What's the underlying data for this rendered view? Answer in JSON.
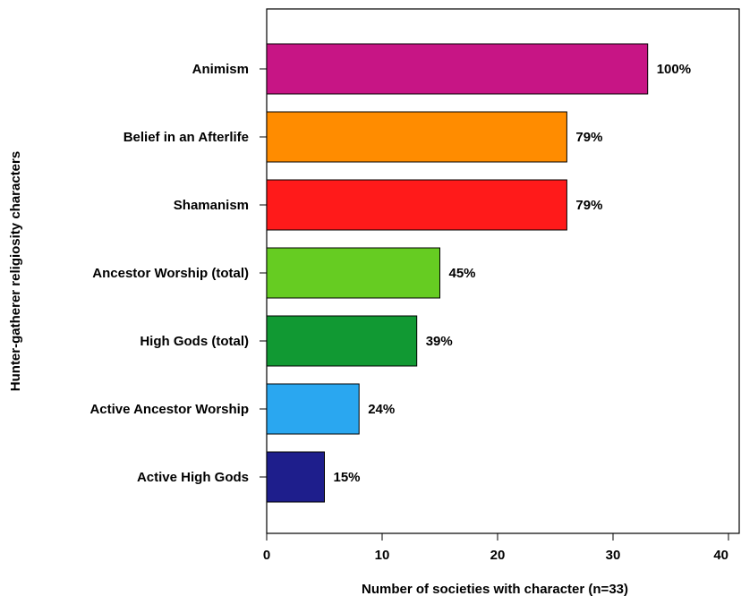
{
  "chart_data": {
    "type": "bar",
    "orientation": "horizontal",
    "xlabel": "Number of societies with character (n=33)",
    "ylabel": "Hunter-gatherer religiosity characters",
    "xlim": [
      0,
      40
    ],
    "xticks": [
      0,
      10,
      20,
      30,
      40
    ],
    "grid": false,
    "categories": [
      "Animism",
      "Belief in an Afterlife",
      "Shamanism",
      "Ancestor Worship (total)",
      "High Gods (total)",
      "Active Ancestor Worship",
      "Active High Gods"
    ],
    "values": [
      33,
      26,
      26,
      15,
      13,
      8,
      5
    ],
    "data_labels": [
      "100%",
      "79%",
      "79%",
      "45%",
      "39%",
      "24%",
      "15%"
    ],
    "colors": [
      "#c71585",
      "#ff8c00",
      "#ff1a1a",
      "#66cc22",
      "#119933",
      "#2aa7f0",
      "#1e1e8c"
    ]
  }
}
